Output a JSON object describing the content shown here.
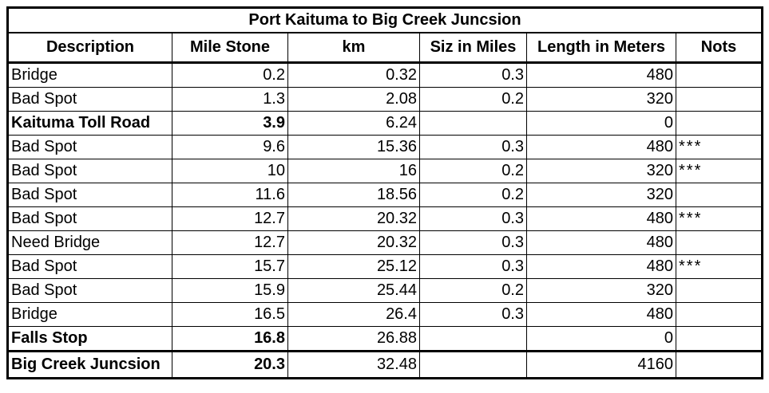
{
  "table": {
    "title": "Port Kaituma to Big Creek Juncsion",
    "headers": [
      "Description",
      "Mile Stone",
      "km",
      "Siz in Miles",
      "Length in Meters",
      "Nots"
    ],
    "rows": [
      [
        "Bridge",
        0.2,
        0.32,
        0.3,
        480,
        null
      ],
      [
        "Bad Spot",
        1.3,
        2.08,
        0.2,
        320,
        null
      ],
      [
        "Kaituma Toll Road",
        3.9,
        6.24,
        null,
        0,
        null
      ],
      [
        "Bad Spot",
        9.6,
        15.36,
        0.3,
        480,
        "***"
      ],
      [
        "Bad Spot",
        10,
        16,
        0.2,
        320,
        "***"
      ],
      [
        "Bad Spot",
        11.6,
        18.56,
        0.2,
        320,
        null
      ],
      [
        "Bad Spot",
        12.7,
        20.32,
        0.3,
        480,
        "***"
      ],
      [
        "Need Bridge",
        12.7,
        20.32,
        0.3,
        480,
        null
      ],
      [
        "Bad Spot",
        15.7,
        25.12,
        0.3,
        480,
        "***"
      ],
      [
        "Bad Spot",
        15.9,
        25.44,
        0.2,
        320,
        null
      ],
      [
        "Bridge",
        16.5,
        26.4,
        0.3,
        480,
        null
      ],
      [
        "Falls Stop",
        16.8,
        26.88,
        null,
        0,
        null
      ]
    ],
    "bold_rows": [
      2,
      11
    ],
    "total": [
      "Big Creek Juncsion",
      20.3,
      32.48,
      null,
      4160,
      null
    ]
  }
}
